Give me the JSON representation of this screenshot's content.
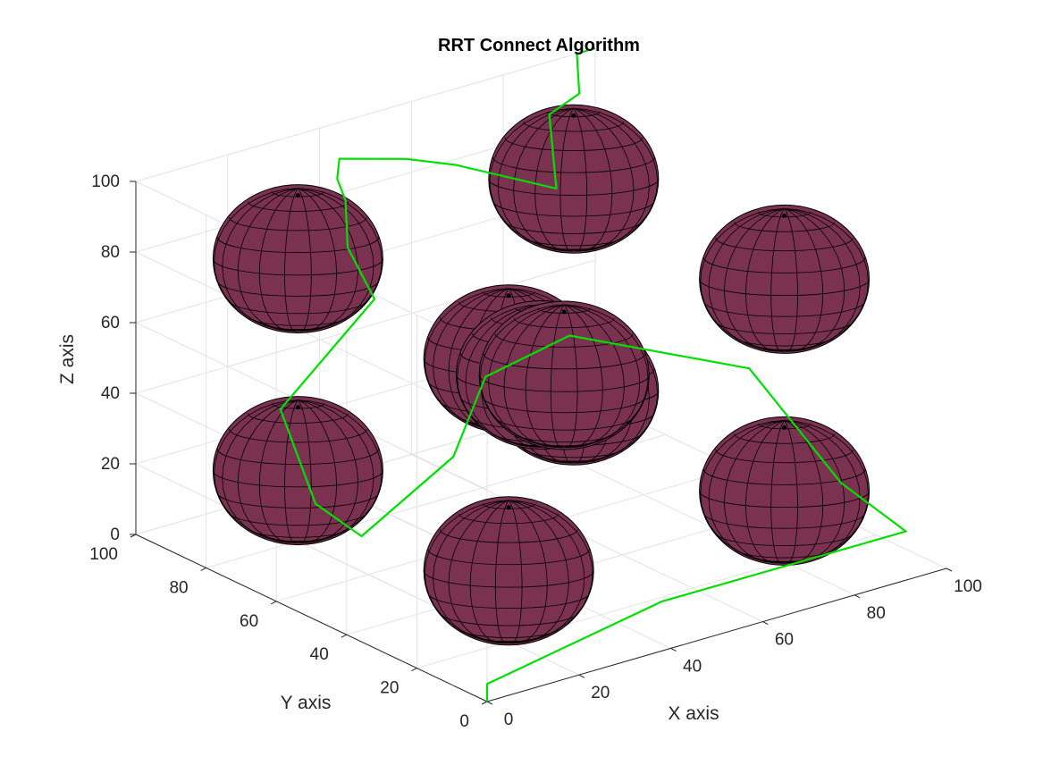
{
  "chart_data": {
    "type": "scatter3d",
    "title": "RRT Connect Algorithm",
    "xlabel": "X axis",
    "ylabel": "Y axis",
    "zlabel": "Z axis",
    "xlim": [
      0,
      100
    ],
    "ylim": [
      0,
      100
    ],
    "zlim": [
      0,
      100
    ],
    "xticks": [
      "0",
      "20",
      "40",
      "60",
      "80",
      "100"
    ],
    "yticks": [
      "0",
      "20",
      "40",
      "60",
      "80",
      "100"
    ],
    "zticks": [
      "0",
      "20",
      "40",
      "60",
      "80",
      "100"
    ],
    "grid": true,
    "obstacles": {
      "shape": "sphere",
      "radius": 20,
      "color": "#7B3250",
      "edge_color": "#000000",
      "centers": [
        [
          20,
          20,
          20
        ],
        [
          20,
          80,
          20
        ],
        [
          80,
          20,
          20
        ],
        [
          80,
          80,
          20
        ],
        [
          20,
          20,
          80
        ],
        [
          20,
          80,
          80
        ],
        [
          80,
          20,
          80
        ],
        [
          80,
          80,
          80
        ],
        [
          50,
          50,
          50
        ],
        [
          55,
          50,
          48
        ]
      ]
    },
    "path": {
      "color": "#00E000",
      "points": [
        [
          0,
          0,
          0
        ],
        [
          0,
          0,
          5
        ],
        [
          38,
          0,
          14
        ],
        [
          95,
          5,
          10
        ],
        [
          100,
          30,
          10
        ],
        [
          80,
          30,
          50
        ],
        [
          60,
          55,
          55
        ],
        [
          57,
          75,
          35
        ],
        [
          50,
          75,
          15
        ],
        [
          30,
          75,
          0
        ],
        [
          20,
          75,
          13
        ],
        [
          20,
          85,
          35
        ],
        [
          42,
          87,
          57
        ],
        [
          40,
          92,
          70
        ],
        [
          38,
          90,
          85
        ],
        [
          40,
          95,
          88
        ],
        [
          42,
          97,
          92
        ],
        [
          55,
          95,
          88
        ],
        [
          68,
          98,
          80
        ],
        [
          90,
          98,
          65
        ],
        [
          90,
          100,
          85
        ],
        [
          95,
          98,
          90
        ],
        [
          96,
          100,
          100
        ],
        [
          100,
          100,
          100
        ]
      ]
    }
  }
}
